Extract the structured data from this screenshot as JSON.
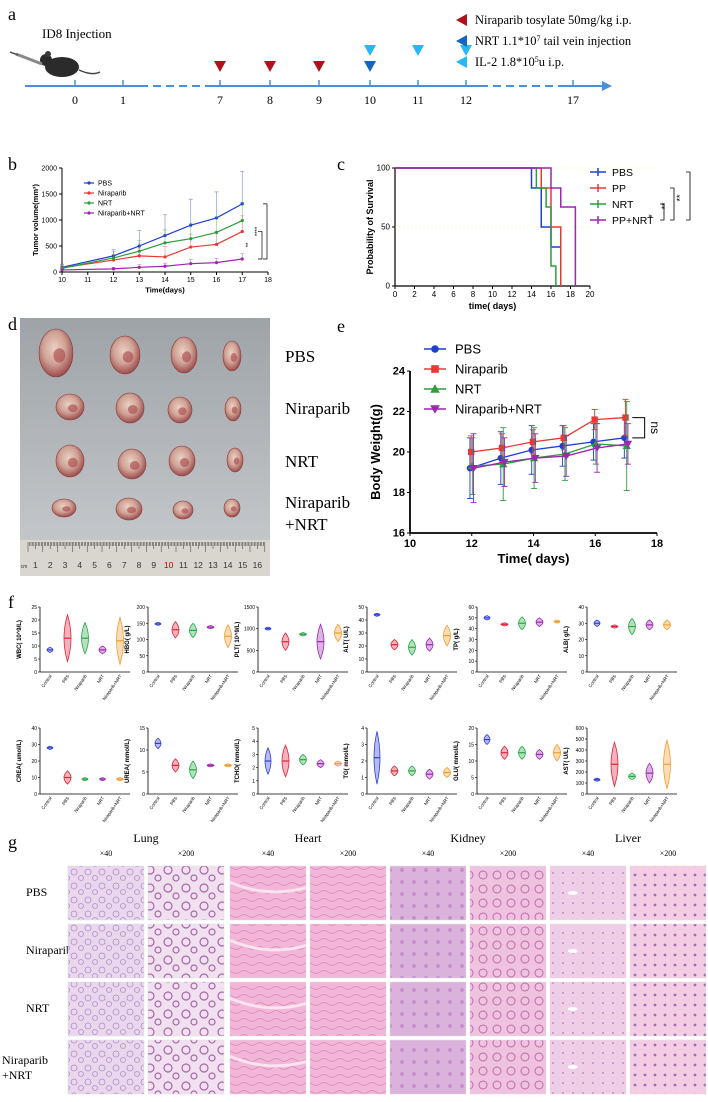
{
  "panels": {
    "a": "a",
    "b": "b",
    "c": "c",
    "d": "d",
    "e": "e",
    "f": "f",
    "g": "g"
  },
  "timeline": {
    "title": "ID8 Injection",
    "ticks": [
      "0",
      "1",
      "7",
      "8",
      "9",
      "10",
      "11",
      "12",
      "17"
    ],
    "legend": [
      {
        "label": "Niraparib tosylate 50mg/kg i.p.",
        "color": "#b0121b"
      },
      {
        "label": "NRT 1.1*10",
        "sup": "7",
        "rest": " tail vein injection",
        "color": "#1565c0"
      },
      {
        "label": "IL-2 1.8*10",
        "sup": "5",
        "rest": "u i.p.",
        "color": "#29b6f6"
      }
    ],
    "red_days": [
      7,
      8,
      9
    ],
    "dark_blue_days": [
      10
    ],
    "light_blue_days": [
      10,
      11,
      12
    ],
    "axis_color": "#4a90d9"
  },
  "chart_data": [
    {
      "id": "b",
      "type": "line",
      "title": "",
      "xlabel": "Time(days)",
      "ylabel": "Tumor volume(mm³)",
      "xlim": [
        10,
        18
      ],
      "ylim": [
        0,
        2000
      ],
      "xticks": [
        "10",
        "11",
        "12",
        "13",
        "14",
        "15",
        "16",
        "17",
        "18"
      ],
      "yticks": [
        "0",
        "500",
        "1000",
        "1500",
        "2000"
      ],
      "x": [
        10,
        12,
        13,
        14,
        15,
        16,
        17
      ],
      "series": [
        {
          "name": "PBS",
          "color": "#1f3fd1",
          "values": [
            90,
            310,
            500,
            700,
            900,
            1040,
            1310
          ],
          "err": [
            60,
            120,
            300,
            400,
            500,
            500,
            620
          ]
        },
        {
          "name": "Niraparib",
          "color": "#e53935",
          "values": [
            80,
            230,
            310,
            290,
            480,
            530,
            780
          ],
          "err": [
            50,
            100,
            150,
            200,
            250,
            250,
            300
          ]
        },
        {
          "name": "NRT",
          "color": "#2e9e3c",
          "values": [
            70,
            270,
            400,
            560,
            640,
            760,
            990
          ],
          "err": [
            40,
            120,
            200,
            250,
            300,
            300,
            350
          ]
        },
        {
          "name": "Niraparib+NRT",
          "color": "#9c27b0",
          "values": [
            40,
            60,
            90,
            110,
            160,
            180,
            250
          ],
          "err": [
            20,
            30,
            50,
            60,
            80,
            80,
            100
          ]
        }
      ],
      "significance": [
        "**",
        "****"
      ]
    },
    {
      "id": "c",
      "type": "line",
      "title": "",
      "xlabel": "time( days)",
      "ylabel": "Probability of Survival",
      "xlim": [
        0,
        20
      ],
      "ylim": [
        0,
        100
      ],
      "xticks": [
        "0",
        "2",
        "4",
        "6",
        "8",
        "10",
        "12",
        "14",
        "16",
        "18",
        "20"
      ],
      "yticks": [
        "0",
        "50",
        "100"
      ],
      "series": [
        {
          "name": "PBS",
          "color": "#1f3fd1",
          "steps": [
            [
              0,
              100
            ],
            [
              14,
              100
            ],
            [
              14,
              83
            ],
            [
              15,
              83
            ],
            [
              15,
              50
            ],
            [
              16,
              50
            ],
            [
              16,
              33
            ],
            [
              17,
              33
            ],
            [
              17,
              0
            ]
          ]
        },
        {
          "name": "PP",
          "color": "#e53935",
          "steps": [
            [
              0,
              100
            ],
            [
              15,
              100
            ],
            [
              15,
              83
            ],
            [
              16,
              83
            ],
            [
              16,
              50
            ],
            [
              17,
              50
            ],
            [
              17,
              0
            ]
          ]
        },
        {
          "name": "NRT",
          "color": "#2e9e3c",
          "steps": [
            [
              0,
              100
            ],
            [
              14.5,
              100
            ],
            [
              14.5,
              83
            ],
            [
              15.5,
              83
            ],
            [
              15.5,
              67
            ],
            [
              16,
              67
            ],
            [
              16,
              17
            ],
            [
              16.5,
              17
            ],
            [
              16.5,
              0
            ]
          ]
        },
        {
          "name": "PP+NRT",
          "color": "#9c27b0",
          "steps": [
            [
              0,
              100
            ],
            [
              16,
              100
            ],
            [
              16,
              83
            ],
            [
              17,
              83
            ],
            [
              17,
              67
            ],
            [
              18.5,
              67
            ],
            [
              18.5,
              0
            ]
          ]
        }
      ],
      "significance": [
        "*",
        "**",
        "**"
      ]
    },
    {
      "id": "e",
      "type": "line",
      "title": "",
      "xlabel": "Time( days)",
      "ylabel": "Body Weight(g)",
      "xlim": [
        10,
        18
      ],
      "ylim": [
        16,
        24
      ],
      "xticks": [
        "10",
        "12",
        "14",
        "16",
        "18"
      ],
      "yticks": [
        "16",
        "18",
        "20",
        "22",
        "24"
      ],
      "x": [
        12,
        13,
        14,
        15,
        16,
        17
      ],
      "series": [
        {
          "name": "PBS",
          "color": "#1f3fd1",
          "marker": "circle",
          "values": [
            19.2,
            19.7,
            20.1,
            20.3,
            20.5,
            20.7
          ],
          "err": [
            1.5,
            1.3,
            1.2,
            1.0,
            0.9,
            1.0
          ]
        },
        {
          "name": "Niraparib",
          "color": "#e53935",
          "marker": "square",
          "values": [
            20.0,
            20.2,
            20.5,
            20.7,
            21.6,
            21.7
          ],
          "err": [
            0.8,
            0.7,
            0.6,
            0.6,
            0.5,
            0.9
          ]
        },
        {
          "name": "NRT",
          "color": "#2e9e3c",
          "marker": "triangle",
          "values": [
            19.3,
            19.4,
            19.7,
            19.9,
            20.4,
            20.3
          ],
          "err": [
            1.4,
            1.8,
            1.5,
            1.3,
            1.0,
            2.2
          ]
        },
        {
          "name": "Niraparib+NRT",
          "color": "#9c27b0",
          "marker": "triangle-down",
          "values": [
            19.2,
            19.5,
            19.7,
            19.8,
            20.2,
            20.4
          ],
          "err": [
            1.7,
            1.2,
            1.2,
            1.0,
            1.2,
            1.0
          ]
        }
      ],
      "significance": [
        "ns"
      ]
    }
  ],
  "photo": {
    "labels": [
      "PBS",
      "Niraparib",
      "NRT",
      "Niraparib\n+NRT"
    ],
    "ruler": [
      "cm",
      "1",
      "2",
      "3",
      "4",
      "5",
      "6",
      "7",
      "8",
      "9",
      "10",
      "11",
      "12",
      "13",
      "14",
      "15",
      "16"
    ]
  },
  "violins": {
    "groups": [
      "Control",
      "PBS",
      "Niraparib",
      "NRT",
      "Niraparib+NRT"
    ],
    "colors": [
      "#2f3fd6",
      "#e0233a",
      "#27a745",
      "#9c27b0",
      "#f39c2d"
    ],
    "plots": [
      {
        "label": "WBC( 10^9/L)",
        "ticks": [
          "0",
          "5",
          "10",
          "15",
          "20",
          "25"
        ],
        "max": 25,
        "centers": [
          8.5,
          13,
          13,
          8.5,
          12
        ],
        "spread": [
          1,
          9,
          6,
          1.5,
          9
        ]
      },
      {
        "label": "HBG( g/L)",
        "ticks": [
          "0",
          "50",
          "100",
          "150",
          "200"
        ],
        "max": 200,
        "centers": [
          148,
          130,
          128,
          138,
          110
        ],
        "spread": [
          2,
          25,
          22,
          5,
          35
        ]
      },
      {
        "label": "PLT( 10^9/L)",
        "ticks": [
          "0",
          "500",
          "1000",
          "1500"
        ],
        "max": 1500,
        "centers": [
          1000,
          700,
          870,
          700,
          900
        ],
        "spread": [
          5,
          200,
          40,
          400,
          200
        ]
      },
      {
        "label": "ALT( U/L)",
        "ticks": [
          "0",
          "10",
          "20",
          "30",
          "40",
          "50"
        ],
        "max": 50,
        "centers": [
          44,
          21,
          19,
          21,
          28
        ],
        "spread": [
          1,
          4,
          6,
          5,
          8
        ]
      },
      {
        "label": "TP( g/L)",
        "ticks": [
          "0",
          "10",
          "20",
          "30",
          "40",
          "50",
          "60"
        ],
        "max": 60,
        "centers": [
          50,
          44,
          45,
          46,
          46.5
        ],
        "spread": [
          2,
          1.5,
          6,
          4,
          1
        ]
      },
      {
        "label": "ALB( g/L)",
        "ticks": [
          "0",
          "10",
          "20",
          "30",
          "40"
        ],
        "max": 40,
        "centers": [
          30,
          28,
          28,
          29,
          29
        ],
        "spread": [
          2,
          1,
          5,
          3,
          3
        ]
      },
      {
        "label": "CREA( umol/L)",
        "ticks": [
          "0",
          "10",
          "20",
          "30",
          "40"
        ],
        "max": 40,
        "centers": [
          28,
          10,
          9,
          9,
          9
        ],
        "spread": [
          1,
          4,
          0.5,
          0.3,
          1
        ]
      },
      {
        "label": "UREA( mmol/L)",
        "ticks": [
          "0",
          "5",
          "10",
          "15"
        ],
        "max": 15,
        "centers": [
          11.5,
          6.5,
          5.5,
          6.5,
          6.5
        ],
        "spread": [
          1.2,
          1.5,
          2,
          0.3,
          0.3
        ]
      },
      {
        "label": "TCHO( mmol/L)",
        "ticks": [
          "0",
          "1",
          "2",
          "3",
          "4",
          "5"
        ],
        "max": 5,
        "centers": [
          2.5,
          2.5,
          2.6,
          2.3,
          2.3
        ],
        "spread": [
          1,
          1.2,
          0.4,
          0.3,
          0.2
        ]
      },
      {
        "label": "TG( mmol/L)",
        "ticks": [
          "0",
          "1",
          "2",
          "3",
          "4"
        ],
        "max": 4,
        "centers": [
          2.2,
          1.4,
          1.4,
          1.2,
          1.3
        ],
        "spread": [
          1.6,
          0.3,
          0.3,
          0.3,
          0.3
        ]
      },
      {
        "label": "GLU( mmol/L)",
        "ticks": [
          "0",
          "5",
          "10",
          "15",
          "20"
        ],
        "max": 20,
        "centers": [
          16.5,
          12.5,
          12.5,
          12,
          12.5
        ],
        "spread": [
          1.5,
          2,
          2,
          1.5,
          2.5
        ]
      },
      {
        "label": "AST( U/L)",
        "ticks": [
          "0",
          "100",
          "200",
          "300",
          "400",
          "500",
          "600"
        ],
        "max": 600,
        "centers": [
          130,
          270,
          160,
          190,
          270
        ],
        "spread": [
          5,
          200,
          30,
          90,
          220
        ]
      }
    ]
  },
  "histology": {
    "organs": [
      "Lung",
      "Heart",
      "Kidney",
      "Liver"
    ],
    "mags": [
      "×40",
      "×200"
    ],
    "rows": [
      "PBS",
      "Niraparib",
      "NRT",
      "Niraparib\n+NRT"
    ]
  }
}
